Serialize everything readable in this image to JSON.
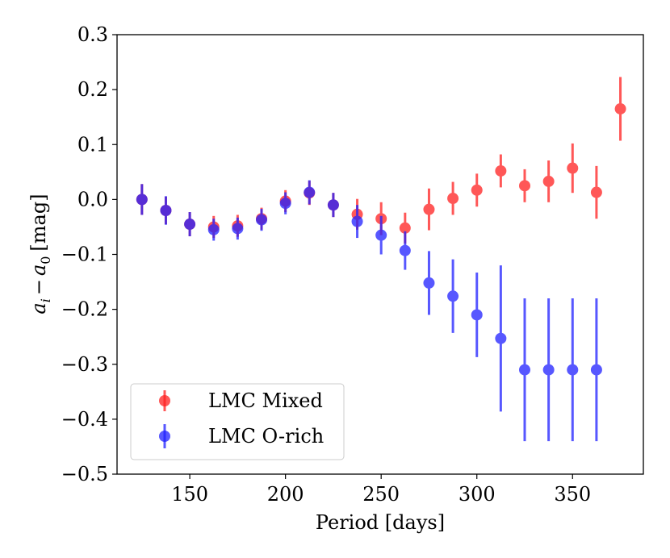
{
  "chart_data": {
    "type": "scatter",
    "title": "",
    "xlabel": "Period [days]",
    "ylabel_parts": {
      "a": "a",
      "i": "i",
      "minus": "−",
      "zero": "0",
      "unit": "[mag]"
    },
    "xlim": [
      112,
      387
    ],
    "ylim": [
      -0.5,
      0.3
    ],
    "xticks": [
      150,
      200,
      250,
      300,
      350
    ],
    "xtick_labels": [
      "150",
      "200",
      "250",
      "300",
      "350"
    ],
    "yticks": [
      -0.5,
      -0.4,
      -0.3,
      -0.2,
      -0.1,
      0.0,
      0.1,
      0.2,
      0.3
    ],
    "ytick_labels": [
      "−0.5",
      "−0.4",
      "−0.3",
      "−0.2",
      "−0.1",
      "0.0",
      "0.1",
      "0.2",
      "0.3"
    ],
    "legend_position": "lower-left",
    "series": [
      {
        "name": "LMC Mixed",
        "color": "#ff2020",
        "x": [
          125,
          137.5,
          150,
          162.5,
          175,
          187.5,
          200,
          212.5,
          225,
          237.5,
          250,
          262.5,
          275,
          287.5,
          300,
          312.5,
          325,
          337.5,
          350,
          362.5,
          375
        ],
        "y": [
          0.0,
          -0.02,
          -0.045,
          -0.05,
          -0.048,
          -0.035,
          -0.003,
          0.012,
          -0.01,
          -0.027,
          -0.035,
          -0.052,
          -0.018,
          0.002,
          0.017,
          0.052,
          0.025,
          0.033,
          0.057,
          0.013,
          0.165
        ],
        "err": [
          0.028,
          0.025,
          0.022,
          0.02,
          0.02,
          0.02,
          0.02,
          0.022,
          0.022,
          0.028,
          0.03,
          0.028,
          0.038,
          0.03,
          0.03,
          0.03,
          0.03,
          0.038,
          0.045,
          0.048,
          0.058
        ]
      },
      {
        "name": "LMC O-rich",
        "color": "#2020ff",
        "x": [
          125,
          137.5,
          150,
          162.5,
          175,
          187.5,
          200,
          212.5,
          225,
          237.5,
          250,
          262.5,
          275,
          287.5,
          300,
          312.5,
          325,
          337.5,
          350,
          362.5
        ],
        "y": [
          0.0,
          -0.02,
          -0.045,
          -0.055,
          -0.053,
          -0.037,
          -0.007,
          0.013,
          -0.01,
          -0.04,
          -0.065,
          -0.093,
          -0.152,
          -0.176,
          -0.21,
          -0.253,
          -0.31,
          -0.31,
          -0.31,
          -0.31
        ],
        "err": [
          0.028,
          0.026,
          0.022,
          0.02,
          0.02,
          0.02,
          0.02,
          0.022,
          0.022,
          0.03,
          0.035,
          0.035,
          0.058,
          0.067,
          0.077,
          0.133,
          0.13,
          0.13,
          0.13,
          0.13
        ]
      }
    ]
  }
}
